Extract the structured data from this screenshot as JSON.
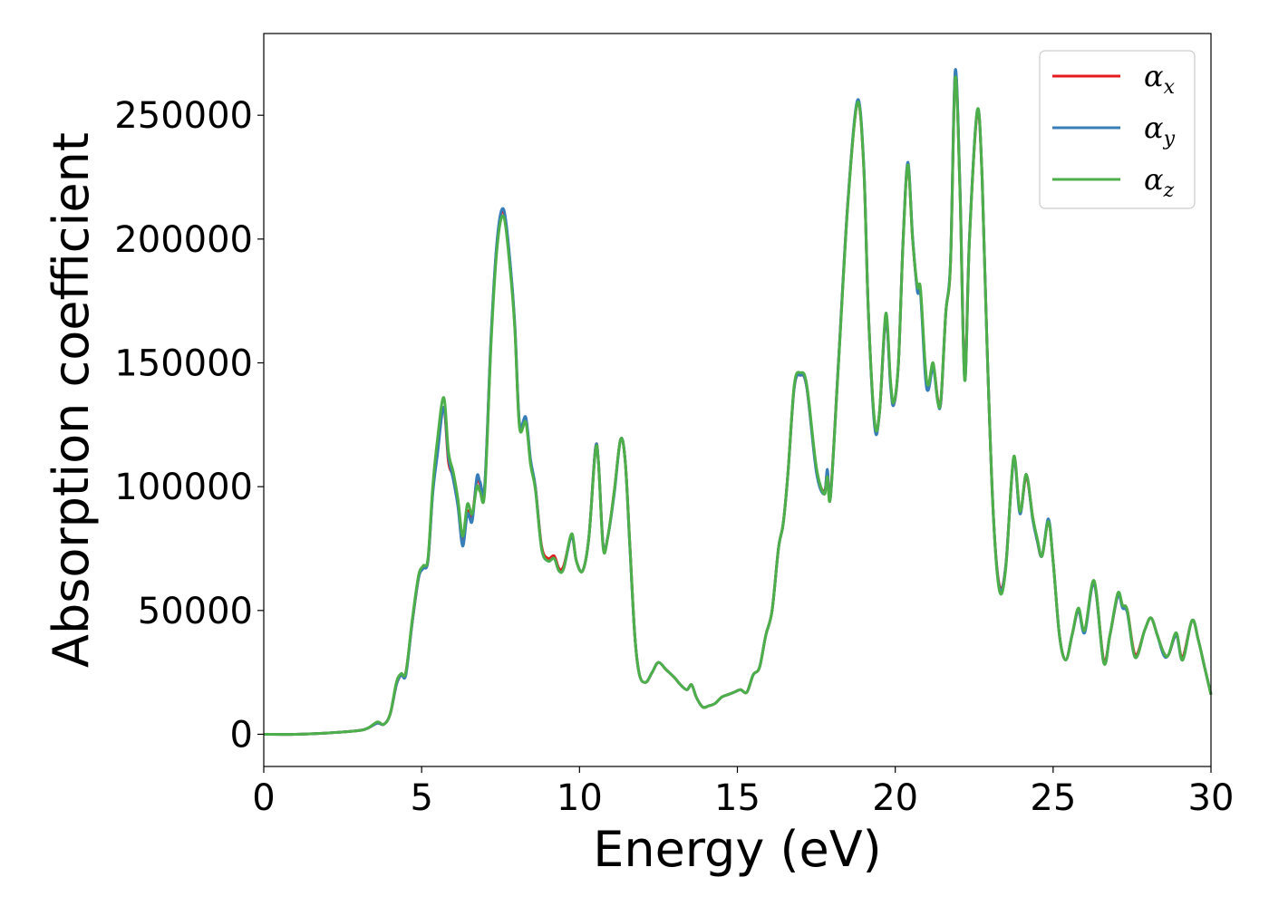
{
  "chart_data": {
    "type": "line",
    "title": "",
    "xlabel": "Energy (eV)",
    "ylabel": "Absorption coefficient",
    "xlim": [
      0,
      30
    ],
    "ylim": [
      -13000,
      283000
    ],
    "xticks": [
      0,
      5,
      10,
      15,
      20,
      25,
      30
    ],
    "yticks": [
      0,
      50000,
      100000,
      150000,
      200000,
      250000
    ],
    "grid": false,
    "legend_position": "top-right",
    "series": [
      {
        "name": "αx",
        "symbol": "α",
        "subscript": "x",
        "color": "#e41a1c",
        "x": [
          0,
          1,
          2,
          3,
          3.3,
          3.6,
          3.8,
          4,
          4.2,
          4.35,
          4.5,
          4.7,
          4.9,
          5.05,
          5.2,
          5.35,
          5.5,
          5.7,
          5.85,
          6.0,
          6.15,
          6.3,
          6.45,
          6.6,
          6.75,
          6.85,
          7.0,
          7.2,
          7.4,
          7.6,
          7.8,
          7.95,
          8.1,
          8.3,
          8.45,
          8.6,
          8.8,
          9.0,
          9.2,
          9.35,
          9.5,
          9.75,
          9.9,
          10.1,
          10.3,
          10.5,
          10.6,
          10.75,
          10.9,
          11.1,
          11.3,
          11.45,
          11.6,
          11.75,
          11.9,
          12.1,
          12.3,
          12.5,
          12.75,
          13.0,
          13.2,
          13.4,
          13.55,
          13.7,
          13.9,
          14.1,
          14.3,
          14.5,
          14.7,
          14.9,
          15.1,
          15.3,
          15.5,
          15.7,
          15.9,
          16.1,
          16.3,
          16.45,
          16.6,
          16.8,
          17.0,
          17.2,
          17.5,
          17.75,
          17.85,
          17.95,
          18.2,
          18.5,
          18.8,
          19.0,
          19.15,
          19.35,
          19.5,
          19.7,
          19.85,
          19.95,
          20.1,
          20.25,
          20.4,
          20.55,
          20.7,
          20.8,
          20.95,
          21.05,
          21.2,
          21.35,
          21.45,
          21.6,
          21.75,
          21.9,
          22.05,
          22.2,
          22.35,
          22.6,
          22.75,
          22.9,
          23.1,
          23.3,
          23.5,
          23.75,
          23.95,
          24.15,
          24.35,
          24.5,
          24.65,
          24.85,
          25.0,
          25.2,
          25.4,
          25.6,
          25.8,
          26.0,
          26.3,
          26.6,
          26.8,
          27.05,
          27.2,
          27.35,
          27.6,
          27.9,
          28.1,
          28.3,
          28.5,
          28.65,
          28.9,
          29.1,
          29.4,
          29.6,
          29.8,
          30.0
        ],
        "y": [
          0,
          0,
          500,
          1500,
          2500,
          4500,
          4000,
          8000,
          20000,
          24000,
          25000,
          45000,
          63000,
          68000,
          70000,
          98000,
          115000,
          132000,
          110000,
          104000,
          93000,
          78000,
          90000,
          88000,
          103000,
          101000,
          100000,
          160000,
          200000,
          211000,
          190000,
          165000,
          125000,
          127000,
          110000,
          100000,
          76000,
          71000,
          72000,
          67000,
          68000,
          80000,
          70000,
          66000,
          80000,
          115000,
          110000,
          76000,
          80000,
          98000,
          119000,
          110000,
          75000,
          40000,
          24000,
          21000,
          25000,
          29000,
          26000,
          23000,
          20000,
          18000,
          20000,
          15000,
          11000,
          11500,
          12500,
          15000,
          16000,
          17000,
          18000,
          17000,
          24000,
          27000,
          40000,
          50000,
          75000,
          85000,
          105000,
          140000,
          145000,
          140000,
          107000,
          98000,
          106000,
          97000,
          150000,
          215000,
          255000,
          230000,
          170000,
          125000,
          130000,
          168000,
          142000,
          133000,
          150000,
          200000,
          230000,
          200000,
          180000,
          179000,
          148000,
          140000,
          149000,
          135000,
          135000,
          170000,
          190000,
          267000,
          220000,
          145000,
          200000,
          251000,
          225000,
          160000,
          90000,
          60000,
          68000,
          111000,
          90000,
          104000,
          88000,
          78000,
          72000,
          86000,
          70000,
          40000,
          30000,
          40000,
          50000,
          42000,
          61000,
          30000,
          40000,
          56000,
          52000,
          50000,
          32000,
          42000,
          47000,
          40000,
          33000,
          32000,
          40000,
          31000,
          46000,
          38000,
          27000,
          16000
        ]
      },
      {
        "name": "αy",
        "symbol": "α",
        "subscript": "y",
        "color": "#377eb8",
        "x": [
          0,
          1,
          2,
          3,
          3.3,
          3.6,
          3.8,
          4,
          4.2,
          4.35,
          4.5,
          4.7,
          4.9,
          5.05,
          5.2,
          5.35,
          5.5,
          5.7,
          5.85,
          6.0,
          6.15,
          6.3,
          6.45,
          6.6,
          6.75,
          6.85,
          7.0,
          7.2,
          7.4,
          7.6,
          7.8,
          7.95,
          8.1,
          8.3,
          8.45,
          8.6,
          8.8,
          9.0,
          9.2,
          9.35,
          9.5,
          9.75,
          9.9,
          10.1,
          10.3,
          10.5,
          10.6,
          10.75,
          10.9,
          11.1,
          11.3,
          11.45,
          11.6,
          11.75,
          11.9,
          12.1,
          12.3,
          12.5,
          12.75,
          13.0,
          13.2,
          13.4,
          13.55,
          13.7,
          13.9,
          14.1,
          14.3,
          14.5,
          14.7,
          14.9,
          15.1,
          15.3,
          15.5,
          15.7,
          15.9,
          16.1,
          16.3,
          16.45,
          16.6,
          16.8,
          17.0,
          17.2,
          17.5,
          17.75,
          17.85,
          17.95,
          18.2,
          18.5,
          18.8,
          19.0,
          19.15,
          19.35,
          19.5,
          19.7,
          19.85,
          19.95,
          20.1,
          20.25,
          20.4,
          20.55,
          20.7,
          20.8,
          20.95,
          21.05,
          21.2,
          21.35,
          21.45,
          21.6,
          21.75,
          21.9,
          22.05,
          22.2,
          22.35,
          22.6,
          22.75,
          22.9,
          23.1,
          23.3,
          23.5,
          23.75,
          23.95,
          24.15,
          24.35,
          24.5,
          24.65,
          24.85,
          25.0,
          25.2,
          25.4,
          25.6,
          25.8,
          26.0,
          26.3,
          26.6,
          26.8,
          27.05,
          27.2,
          27.35,
          27.6,
          27.9,
          28.1,
          28.3,
          28.5,
          28.65,
          28.9,
          29.1,
          29.4,
          29.6,
          29.8,
          30.0
        ],
        "y": [
          0,
          0,
          500,
          1500,
          2500,
          4500,
          4000,
          8000,
          20000,
          24000,
          24000,
          45000,
          63000,
          67000,
          70000,
          97000,
          113000,
          132000,
          112000,
          103000,
          92000,
          76000,
          89000,
          86000,
          104000,
          102000,
          101000,
          161000,
          201000,
          212000,
          191000,
          166000,
          126000,
          128000,
          111000,
          100000,
          75000,
          70000,
          71000,
          66000,
          67000,
          80000,
          70000,
          66000,
          80000,
          115000,
          110000,
          76000,
          80000,
          97000,
          119000,
          110000,
          74000,
          40000,
          24000,
          21000,
          25000,
          29000,
          26000,
          23000,
          20000,
          18000,
          20000,
          15000,
          11000,
          11500,
          12500,
          15000,
          16000,
          17000,
          18000,
          17000,
          24000,
          27000,
          40000,
          50000,
          75000,
          85000,
          105000,
          140000,
          145000,
          140000,
          106000,
          97000,
          107000,
          96000,
          150000,
          215000,
          256000,
          231000,
          170000,
          124000,
          130000,
          168000,
          141000,
          133000,
          150000,
          200000,
          231000,
          201000,
          179000,
          178000,
          145000,
          139000,
          148000,
          134000,
          135000,
          170000,
          191000,
          268000,
          221000,
          143000,
          200000,
          252000,
          225000,
          160000,
          90000,
          59000,
          68000,
          111000,
          89000,
          105000,
          87000,
          78000,
          72000,
          87000,
          70000,
          40000,
          30000,
          40000,
          50000,
          41000,
          61000,
          29000,
          40000,
          56000,
          51000,
          49000,
          31000,
          42000,
          47000,
          40000,
          32000,
          32000,
          40000,
          30000,
          46000,
          38000,
          27000,
          16000
        ]
      },
      {
        "name": "αz",
        "symbol": "α",
        "subscript": "z",
        "color": "#4daf4a",
        "x": [
          0,
          1,
          2,
          3,
          3.3,
          3.6,
          3.8,
          4,
          4.2,
          4.35,
          4.5,
          4.7,
          4.9,
          5.05,
          5.2,
          5.35,
          5.5,
          5.7,
          5.85,
          6.0,
          6.15,
          6.3,
          6.45,
          6.6,
          6.75,
          6.85,
          7.0,
          7.2,
          7.4,
          7.6,
          7.8,
          7.95,
          8.1,
          8.3,
          8.45,
          8.6,
          8.8,
          9.0,
          9.2,
          9.35,
          9.5,
          9.75,
          9.9,
          10.1,
          10.3,
          10.5,
          10.6,
          10.75,
          10.9,
          11.1,
          11.3,
          11.45,
          11.6,
          11.75,
          11.9,
          12.1,
          12.3,
          12.5,
          12.75,
          13.0,
          13.2,
          13.4,
          13.55,
          13.7,
          13.9,
          14.1,
          14.3,
          14.5,
          14.7,
          14.9,
          15.1,
          15.3,
          15.5,
          15.7,
          15.9,
          16.1,
          16.3,
          16.45,
          16.6,
          16.8,
          17.0,
          17.2,
          17.5,
          17.75,
          17.85,
          17.95,
          18.2,
          18.5,
          18.8,
          19.0,
          19.15,
          19.35,
          19.5,
          19.7,
          19.85,
          19.95,
          20.1,
          20.25,
          20.4,
          20.55,
          20.7,
          20.8,
          20.95,
          21.05,
          21.2,
          21.35,
          21.45,
          21.6,
          21.75,
          21.9,
          22.05,
          22.2,
          22.35,
          22.6,
          22.75,
          22.9,
          23.1,
          23.3,
          23.5,
          23.75,
          23.95,
          24.15,
          24.35,
          24.5,
          24.65,
          24.85,
          25.0,
          25.2,
          25.4,
          25.6,
          25.8,
          26.0,
          26.3,
          26.6,
          26.8,
          27.05,
          27.2,
          27.35,
          27.6,
          27.9,
          28.1,
          28.3,
          28.5,
          28.65,
          28.9,
          29.1,
          29.4,
          29.6,
          29.8,
          30.0
        ],
        "y": [
          0,
          0,
          500,
          1500,
          2500,
          5000,
          4000,
          8000,
          21000,
          24500,
          25000,
          46000,
          64000,
          68000,
          71000,
          100000,
          119000,
          136000,
          114000,
          106000,
          95000,
          80000,
          93000,
          89000,
          100000,
          98000,
          98000,
          158000,
          198000,
          209000,
          188000,
          164000,
          124000,
          126000,
          109000,
          99000,
          75000,
          70000,
          71000,
          66000,
          67000,
          81000,
          70000,
          66000,
          80000,
          114000,
          110000,
          75000,
          80000,
          98000,
          119000,
          110000,
          75000,
          40000,
          24000,
          21000,
          25000,
          29000,
          26000,
          23000,
          20000,
          18000,
          20000,
          15000,
          11000,
          11500,
          12500,
          15000,
          16000,
          17000,
          18000,
          17000,
          24000,
          27000,
          40000,
          50000,
          75000,
          85000,
          105000,
          141000,
          146000,
          141000,
          108000,
          97000,
          104000,
          96000,
          149000,
          214000,
          255000,
          230000,
          170000,
          126000,
          130000,
          170000,
          143000,
          134000,
          150000,
          199000,
          230000,
          200000,
          181000,
          180000,
          149000,
          141000,
          150000,
          134000,
          136000,
          170000,
          190000,
          265000,
          219000,
          143000,
          199000,
          252000,
          225000,
          160000,
          90000,
          58000,
          67000,
          112000,
          90000,
          105000,
          88000,
          79000,
          72000,
          86000,
          70000,
          40000,
          30000,
          40000,
          51000,
          42000,
          62000,
          29000,
          40000,
          57000,
          52000,
          50000,
          31000,
          42000,
          47000,
          40000,
          33000,
          32000,
          41000,
          30000,
          46000,
          38000,
          27000,
          16000
        ]
      }
    ]
  }
}
